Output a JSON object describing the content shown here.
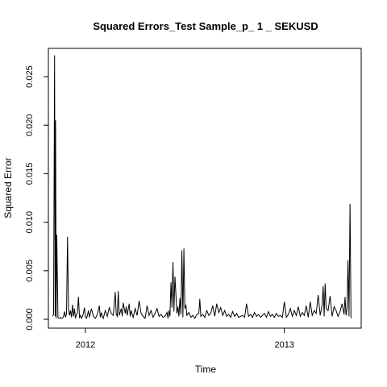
{
  "chart_data": {
    "type": "line",
    "title": "Squared Errors_Test Sample_p_ 1 _ SEKUSD",
    "xlabel": "Time",
    "ylabel": "Squared Error",
    "xlim": [
      2011.83,
      2013.37
    ],
    "ylim": [
      0.0,
      0.027
    ],
    "x_ticks": [
      2012,
      2013
    ],
    "x_tick_labels": [
      "2012",
      "2013"
    ],
    "y_ticks": [
      0.0,
      0.005,
      0.01,
      0.015,
      0.02,
      0.025
    ],
    "y_tick_labels": [
      "0.000",
      "0.005",
      "0.010",
      "0.015",
      "0.020",
      "0.025"
    ],
    "grid": false,
    "series": [
      {
        "color": "#000000",
        "x": [
          2011.835,
          2011.84,
          2011.845,
          2011.848,
          2011.85,
          2011.853,
          2011.856,
          2011.859,
          2011.862,
          2011.866,
          2011.87,
          2011.875,
          2011.88,
          2011.885,
          2011.89,
          2011.895,
          2011.9,
          2011.905,
          2011.91,
          2011.915,
          2011.92,
          2011.925,
          2011.93,
          2011.935,
          2011.94,
          2011.945,
          2011.95,
          2011.955,
          2011.96,
          2011.965,
          2011.97,
          2011.975,
          2011.98,
          2011.985,
          2011.99,
          2011.995,
          2012.0,
          2012.005,
          2012.01,
          2012.015,
          2012.02,
          2012.03,
          2012.04,
          2012.05,
          2012.06,
          2012.07,
          2012.075,
          2012.08,
          2012.085,
          2012.09,
          2012.1,
          2012.11,
          2012.12,
          2012.13,
          2012.14,
          2012.15,
          2012.155,
          2012.16,
          2012.165,
          2012.17,
          2012.18,
          2012.185,
          2012.19,
          2012.2,
          2012.205,
          2012.21,
          2012.22,
          2012.225,
          2012.23,
          2012.24,
          2012.25,
          2012.26,
          2012.27,
          2012.28,
          2012.29,
          2012.3,
          2012.31,
          2012.32,
          2012.33,
          2012.34,
          2012.35,
          2012.36,
          2012.37,
          2012.38,
          2012.39,
          2012.4,
          2012.41,
          2012.415,
          2012.42,
          2012.425,
          2012.43,
          2012.435,
          2012.44,
          2012.445,
          2012.45,
          2012.46,
          2012.465,
          2012.47,
          2012.475,
          2012.48,
          2012.485,
          2012.49,
          2012.495,
          2012.5,
          2012.505,
          2012.51,
          2012.52,
          2012.53,
          2012.54,
          2012.55,
          2012.56,
          2012.57,
          2012.575,
          2012.58,
          2012.59,
          2012.6,
          2012.61,
          2012.62,
          2012.63,
          2012.64,
          2012.65,
          2012.66,
          2012.67,
          2012.68,
          2012.69,
          2012.7,
          2012.71,
          2012.72,
          2012.73,
          2012.74,
          2012.75,
          2012.76,
          2012.77,
          2012.78,
          2012.79,
          2012.8,
          2012.81,
          2012.82,
          2012.83,
          2012.84,
          2012.85,
          2012.86,
          2012.87,
          2012.88,
          2012.89,
          2012.9,
          2012.91,
          2012.92,
          2012.93,
          2012.94,
          2012.95,
          2012.96,
          2012.97,
          2012.98,
          2012.99,
          2013.0,
          2013.01,
          2013.02,
          2013.03,
          2013.04,
          2013.05,
          2013.06,
          2013.07,
          2013.08,
          2013.09,
          2013.1,
          2013.11,
          2013.12,
          2013.13,
          2013.14,
          2013.15,
          2013.16,
          2013.17,
          2013.18,
          2013.19,
          2013.195,
          2013.2,
          2013.205,
          2013.21,
          2013.22,
          2013.23,
          2013.24,
          2013.25,
          2013.26,
          2013.27,
          2013.28,
          2013.29,
          2013.3,
          2013.305,
          2013.31,
          2013.315,
          2013.32,
          2013.325,
          2013.33,
          2013.335
        ],
        "y": [
          0.0003,
          0.0005,
          0.0272,
          0.0003,
          0.0205,
          0.0001,
          0.0087,
          0.0045,
          0.0002,
          0.0001,
          0.0001,
          0.0002,
          0.0001,
          0.0001,
          0.0003,
          0.0008,
          0.0002,
          0.0006,
          0.0085,
          0.0012,
          0.0004,
          0.0009,
          0.0002,
          0.0015,
          0.0003,
          0.0011,
          0.0001,
          0.0005,
          0.0007,
          0.0023,
          0.0002,
          0.0004,
          0.0001,
          0.0003,
          0.0006,
          0.0012,
          0.0003,
          0.0001,
          0.0004,
          0.0009,
          0.0002,
          0.0011,
          0.0003,
          0.0001,
          0.0005,
          0.0014,
          0.0002,
          0.0007,
          0.0003,
          0.0001,
          0.0009,
          0.0003,
          0.0012,
          0.0006,
          0.0004,
          0.0028,
          0.0005,
          0.0003,
          0.0029,
          0.0004,
          0.0011,
          0.0003,
          0.0017,
          0.0006,
          0.0013,
          0.0004,
          0.0016,
          0.0003,
          0.0009,
          0.0002,
          0.0011,
          0.0004,
          0.0019,
          0.0006,
          0.0003,
          0.0001,
          0.0014,
          0.0004,
          0.0009,
          0.0002,
          0.0006,
          0.0011,
          0.0003,
          0.0005,
          0.0002,
          0.0003,
          0.0007,
          0.0001,
          0.0009,
          0.0003,
          0.0038,
          0.0012,
          0.0059,
          0.0008,
          0.0044,
          0.0006,
          0.0013,
          0.0003,
          0.0022,
          0.0005,
          0.0071,
          0.0002,
          0.0073,
          0.0011,
          0.0015,
          0.0004,
          0.0007,
          0.0002,
          0.0004,
          0.0001,
          0.0005,
          0.0006,
          0.0021,
          0.0003,
          0.0005,
          0.0002,
          0.0009,
          0.0004,
          0.0006,
          0.0014,
          0.0003,
          0.0016,
          0.0007,
          0.0012,
          0.0004,
          0.0009,
          0.0003,
          0.0005,
          0.0002,
          0.0008,
          0.0003,
          0.0006,
          0.0002,
          0.0003,
          0.0004,
          0.0002,
          0.0016,
          0.0003,
          0.0005,
          0.0002,
          0.0007,
          0.0003,
          0.0005,
          0.0002,
          0.0004,
          0.0006,
          0.0002,
          0.0008,
          0.0003,
          0.0005,
          0.0002,
          0.0006,
          0.0003,
          0.0004,
          0.0002,
          0.0018,
          0.0002,
          0.0005,
          0.0011,
          0.0003,
          0.0009,
          0.0004,
          0.0013,
          0.0003,
          0.0007,
          0.0004,
          0.0014,
          0.0002,
          0.0018,
          0.0004,
          0.0009,
          0.0006,
          0.0025,
          0.0004,
          0.0015,
          0.0034,
          0.0003,
          0.0037,
          0.0011,
          0.0009,
          0.0024,
          0.0003,
          0.0013,
          0.0009,
          0.0003,
          0.0008,
          0.0016,
          0.0005,
          0.0023,
          0.0004,
          0.0012,
          0.0061,
          0.0003,
          0.0119,
          0.0001
        ]
      }
    ]
  }
}
